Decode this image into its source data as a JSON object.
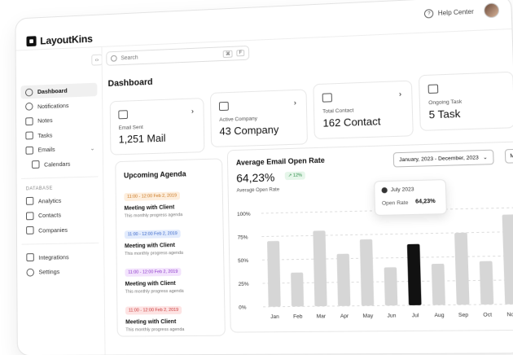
{
  "header": {
    "help_label": "Help Center"
  },
  "brand": {
    "name": "LayoutKins"
  },
  "search": {
    "placeholder": "Search",
    "shortcut_mod": "⌘",
    "shortcut_key": "F"
  },
  "sidebar": {
    "items": [
      {
        "label": "Dashboard",
        "icon": "dashboard-icon",
        "active": true
      },
      {
        "label": "Notifications",
        "icon": "bell-icon"
      },
      {
        "label": "Notes",
        "icon": "note-icon"
      },
      {
        "label": "Tasks",
        "icon": "task-icon"
      },
      {
        "label": "Emails",
        "icon": "mail-icon"
      },
      {
        "label": "Calendars",
        "icon": "calendar-icon"
      }
    ],
    "section_label": "DATABASE",
    "db_items": [
      {
        "label": "Analytics",
        "icon": "chart-icon"
      },
      {
        "label": "Contacts",
        "icon": "contacts-icon"
      },
      {
        "label": "Companies",
        "icon": "building-icon"
      }
    ],
    "footer_items": [
      {
        "label": "Integrations",
        "icon": "grid-icon"
      },
      {
        "label": "Settings",
        "icon": "gear-icon"
      }
    ]
  },
  "page": {
    "title": "Dashboard"
  },
  "stats": [
    {
      "label": "Email Sent",
      "value": "1,251 Mail"
    },
    {
      "label": "Active Company",
      "value": "43 Company"
    },
    {
      "label": "Total Contact",
      "value": "162 Contact"
    },
    {
      "label": "Ongoing Task",
      "value": "5 Task"
    }
  ],
  "agenda": {
    "title": "Upcoming Agenda",
    "items": [
      {
        "time": "11:00 - 12:00 Feb 2, 2019",
        "title": "Meeting with Client",
        "subtitle": "This monthly progress agenda",
        "color": "#f5a04a"
      },
      {
        "time": "11:00 - 12:00 Feb 2, 2019",
        "title": "Meeting with Client",
        "subtitle": "This monthly progress agenda",
        "color": "#4a7ff5"
      },
      {
        "time": "11:00 - 12:00 Feb 2, 2019",
        "title": "Meeting with Client",
        "subtitle": "This monthly progress agenda",
        "color": "#b04af5"
      },
      {
        "time": "11:00 - 12:00 Feb 2, 2019",
        "title": "Meeting with Client",
        "subtitle": "This monthly progress agenda",
        "color": "#f54a4a"
      }
    ]
  },
  "open_rate": {
    "title": "Average Email Open Rate",
    "date_range": "January, 2023 - December, 2023",
    "more_label": "M",
    "value": "64,23%",
    "delta": "12%",
    "label": "Average Open Rate",
    "tooltip": {
      "month": "July 2023",
      "label": "Open Rate",
      "value": "64,23%"
    }
  },
  "chart_data": {
    "type": "bar",
    "categories": [
      "Jan",
      "Feb",
      "Mar",
      "Apr",
      "May",
      "Jun",
      "Jul",
      "Aug",
      "Sep",
      "Oct",
      "Nov"
    ],
    "values": [
      70,
      36,
      80,
      55,
      70,
      40,
      64,
      43,
      75,
      45,
      93
    ],
    "highlight": "Jul",
    "ylim": [
      0,
      100
    ],
    "yticks": [
      "100%",
      "75%",
      "50%",
      "25%",
      "0%"
    ],
    "bar_color": "#d6d6d6",
    "highlight_color": "#111111",
    "grid": true
  }
}
